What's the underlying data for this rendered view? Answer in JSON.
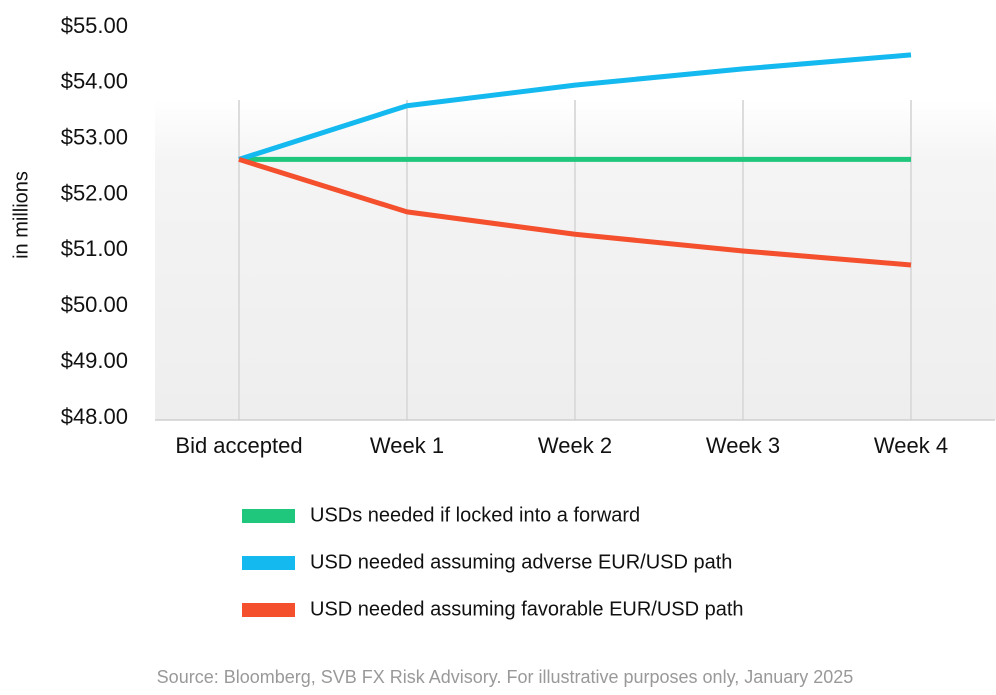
{
  "chart_data": {
    "type": "line",
    "y_label": "in millions",
    "categories": [
      "Bid accepted",
      "Week 1",
      "Week 2",
      "Week 3",
      "Week 4"
    ],
    "series": [
      {
        "name": "USDs needed if locked into a forward",
        "color": "#1ec77c",
        "values": [
          52.63,
          52.63,
          52.63,
          52.63,
          52.63
        ]
      },
      {
        "name": "USD needed assuming adverse EUR/USD path",
        "color": "#14b9ef",
        "values": [
          52.63,
          53.59,
          53.96,
          54.25,
          54.5
        ]
      },
      {
        "name": "USD needed assuming favorable EUR/USD path",
        "color": "#f4502e",
        "values": [
          52.63,
          51.69,
          51.29,
          50.99,
          50.74
        ]
      }
    ],
    "ylim": [
      48,
      55
    ],
    "yticks": [
      {
        "value": 48,
        "label": "$48.00"
      },
      {
        "value": 49,
        "label": "$49.00"
      },
      {
        "value": 50,
        "label": "$50.00"
      },
      {
        "value": 51,
        "label": "$51.00"
      },
      {
        "value": 52,
        "label": "$52.00"
      },
      {
        "value": 53,
        "label": "$53.00"
      },
      {
        "value": 54,
        "label": "$54.00"
      },
      {
        "value": 55,
        "label": "$55.00"
      }
    ],
    "source": "Source: Bloomberg, SVB FX Risk Advisory. For illustrative purposes only, January 2025"
  }
}
